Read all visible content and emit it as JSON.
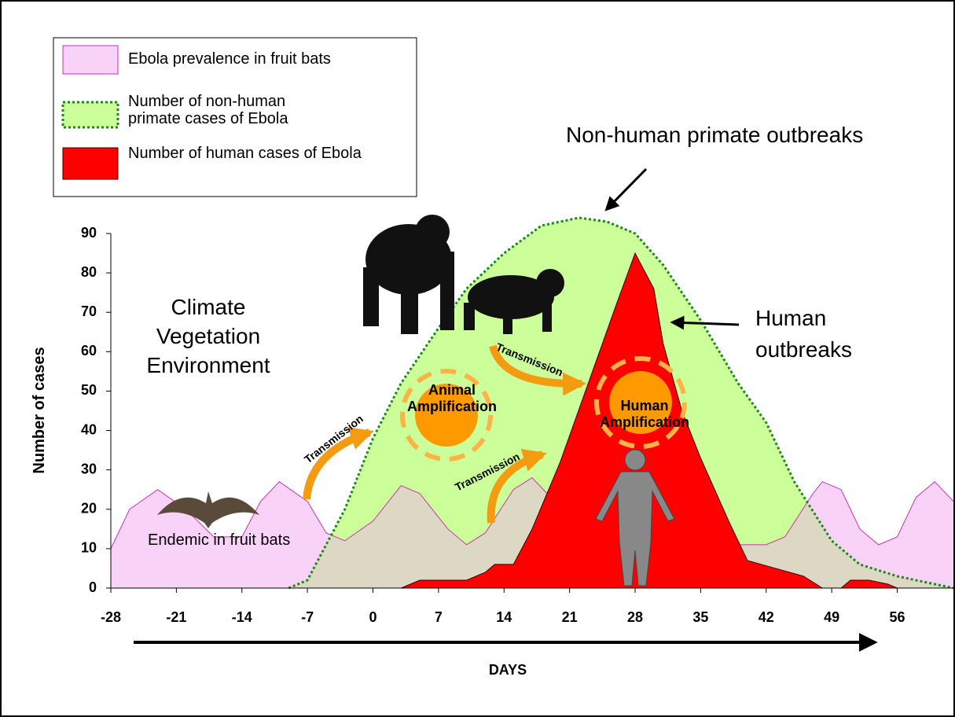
{
  "chart_data": {
    "type": "area",
    "xlabel": "DAYS",
    "ylabel": "Number of cases",
    "xlim": [
      -28,
      62
    ],
    "ylim": [
      0,
      90
    ],
    "xticks": [
      -28,
      -21,
      -14,
      -7,
      0,
      7,
      14,
      21,
      28,
      35,
      42,
      49,
      56
    ],
    "yticks": [
      0,
      10,
      20,
      30,
      40,
      50,
      60,
      70,
      80,
      90
    ],
    "grid": false,
    "series": [
      {
        "name": "Ebola prevalence in fruit bats",
        "color": "#f9d3f7",
        "x": [
          -28,
          -26,
          -23,
          -20,
          -17,
          -14,
          -12,
          -10,
          -7,
          -5,
          -3,
          0,
          3,
          5,
          8,
          10,
          12,
          15,
          17,
          19,
          22,
          24,
          28,
          35,
          42,
          44,
          47,
          48,
          50,
          52,
          54,
          56,
          58,
          60,
          62
        ],
        "values": [
          10,
          20,
          25,
          20,
          13,
          13,
          22,
          27,
          22,
          14,
          12,
          17,
          26,
          24,
          15,
          11,
          14,
          25,
          28,
          23,
          14,
          11,
          11,
          11,
          11,
          13,
          24,
          27,
          25,
          15,
          11,
          13,
          23,
          27,
          22
        ]
      },
      {
        "name": "Number of non-human primate cases of Ebola",
        "color": "#ccff99",
        "x": [
          -9,
          -7,
          -3,
          0,
          3,
          7,
          10,
          14,
          18,
          22,
          25,
          28,
          31,
          35,
          39,
          42,
          45,
          49,
          52,
          56,
          62
        ],
        "values": [
          0,
          2,
          20,
          38,
          52,
          66,
          76,
          85,
          92,
          94,
          93,
          90,
          82,
          68,
          52,
          42,
          27,
          12,
          6,
          3,
          0
        ]
      },
      {
        "name": "Number of human cases of Ebola",
        "color": "#ff0000",
        "x": [
          3,
          5,
          10,
          12,
          13,
          15,
          17,
          20,
          23,
          26,
          28,
          30,
          31,
          33,
          35,
          38,
          40,
          43,
          46,
          48,
          50,
          51,
          53,
          55,
          56
        ],
        "values": [
          0,
          2,
          2,
          4,
          6,
          6,
          15,
          32,
          52,
          72,
          85,
          76,
          62,
          45,
          33,
          17,
          7,
          5,
          3,
          0,
          0,
          2,
          2,
          1,
          0
        ]
      }
    ],
    "annotations": [
      "Non-human primate outbreaks",
      "Human outbreaks",
      "Climate Vegetation Environment",
      "Endemic in fruit bats",
      "Animal Amplification",
      "Human Amplification",
      "Transmission",
      "Transmission",
      "Transmission"
    ]
  }
}
